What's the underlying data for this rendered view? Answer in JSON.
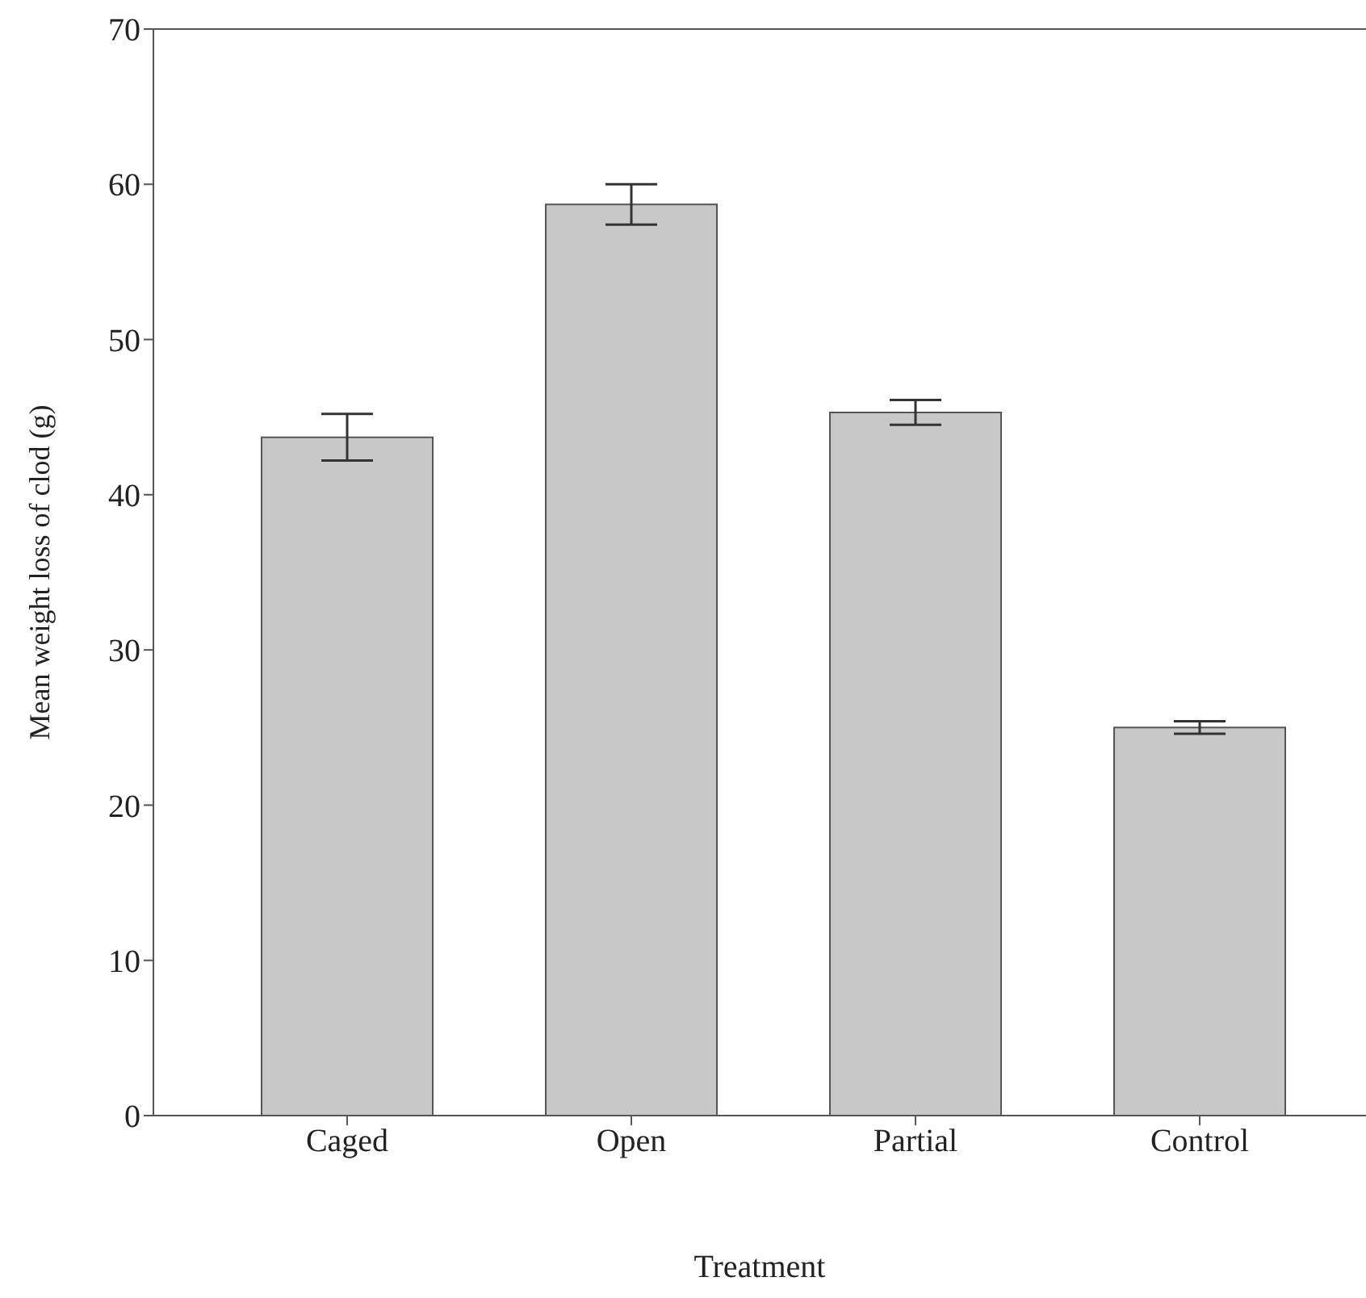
{
  "chart_data": {
    "type": "bar",
    "xlabel": "Treatment",
    "ylabel": "Mean weight loss of clod (g)",
    "categories": [
      "Caged",
      "Open",
      "Partial",
      "Control"
    ],
    "values": [
      43.7,
      58.7,
      45.3,
      25.0
    ],
    "errors": [
      1.5,
      1.3,
      0.8,
      0.4
    ],
    "color": "#c8c8c8",
    "ylim": [
      0,
      70
    ],
    "yticks": [
      0,
      10,
      20,
      30,
      40,
      50,
      60,
      70
    ]
  }
}
